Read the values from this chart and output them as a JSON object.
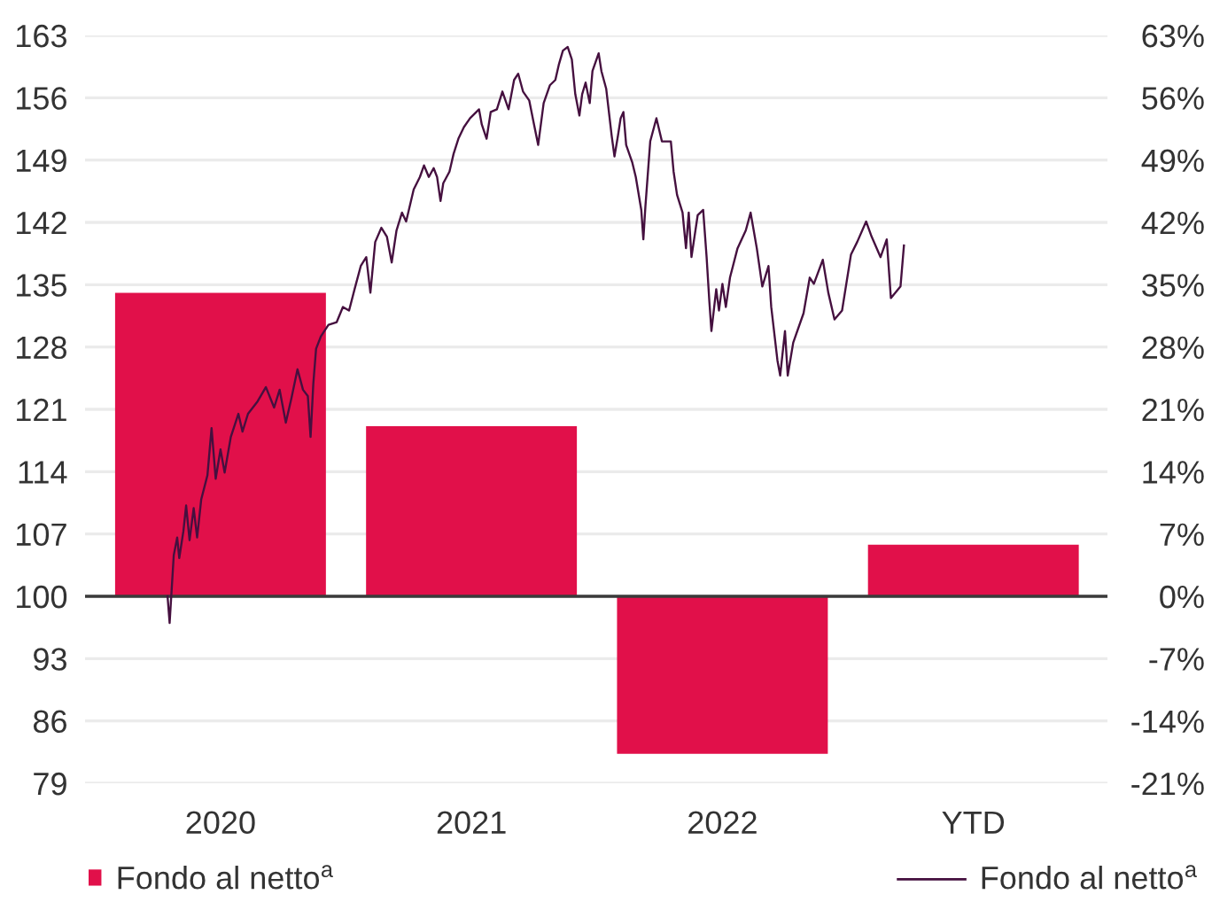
{
  "chart_data": {
    "type": "bar",
    "series": [
      {
        "name": "Fondo al netto$^{a}$",
        "axis": "y2",
        "color": "#e1104a",
        "x": [
          "2020-07-01",
          "2021-07-01",
          "2022-07-01",
          "2023-07-01"
        ],
        "values": [
          34.1,
          19.1,
          -17.7,
          5.8
        ]
      },
      {
        "name": "Fondo al netto$^{a}$",
        "type": "line",
        "axis": "y",
        "color": "#45103f",
        "x": [
          "2020-04-15",
          "2020-04-18",
          "2020-04-24",
          "2020-04-29",
          "2020-05-02",
          "2020-05-08",
          "2020-05-12",
          "2020-05-17",
          "2020-05-23",
          "2020-05-28",
          "2020-06-03",
          "2020-06-12",
          "2020-06-18",
          "2020-06-24",
          "2020-07-01",
          "2020-07-07",
          "2020-07-16",
          "2020-07-27",
          "2020-08-02",
          "2020-08-10",
          "2020-08-24",
          "2020-09-05",
          "2020-09-17",
          "2020-09-25",
          "2020-10-04",
          "2020-10-12",
          "2020-10-21",
          "2020-10-29",
          "2020-11-05",
          "2020-11-09",
          "2020-11-13",
          "2020-11-17",
          "2020-11-24",
          "2020-12-05",
          "2020-12-17",
          "2020-12-26",
          "2021-01-04",
          "2021-01-12",
          "2021-01-21",
          "2021-01-29",
          "2021-02-04",
          "2021-02-11",
          "2021-02-20",
          "2021-02-28",
          "2021-03-07",
          "2021-03-14",
          "2021-03-22",
          "2021-03-28",
          "2021-04-08",
          "2021-04-17",
          "2021-04-23",
          "2021-04-30",
          "2021-05-07",
          "2021-05-12",
          "2021-05-17",
          "2021-05-21",
          "2021-05-30",
          "2021-06-05",
          "2021-06-12",
          "2021-06-20",
          "2021-06-29",
          "2021-07-12",
          "2021-07-16",
          "2021-07-23",
          "2021-07-29",
          "2021-08-07",
          "2021-08-15",
          "2021-08-24",
          "2021-09-01",
          "2021-09-07",
          "2021-09-14",
          "2021-09-23",
          "2021-09-30",
          "2021-10-06",
          "2021-10-14",
          "2021-10-23",
          "2021-10-31",
          "2021-11-05",
          "2021-11-11",
          "2021-11-18",
          "2021-11-24",
          "2021-11-29",
          "2021-12-05",
          "2021-12-09",
          "2021-12-14",
          "2021-12-20",
          "2021-12-24",
          "2022-01-02",
          "2022-01-06",
          "2022-01-13",
          "2022-01-21",
          "2022-01-25",
          "2022-01-30",
          "2022-02-03",
          "2022-02-07",
          "2022-02-11",
          "2022-02-20",
          "2022-02-25",
          "2022-03-05",
          "2022-03-08",
          "2022-03-11",
          "2022-03-18",
          "2022-03-27",
          "2022-04-04",
          "2022-04-17",
          "2022-04-21",
          "2022-04-26",
          "2022-05-04",
          "2022-05-09",
          "2022-05-13",
          "2022-05-17",
          "2022-05-26",
          "2022-06-03",
          "2022-06-08",
          "2022-06-12",
          "2022-06-15",
          "2022-06-22",
          "2022-06-26",
          "2022-07-01",
          "2022-07-06",
          "2022-07-12",
          "2022-07-23",
          "2022-08-04",
          "2022-08-11",
          "2022-08-20",
          "2022-08-28",
          "2022-09-06",
          "2022-09-10",
          "2022-09-19",
          "2022-09-23",
          "2022-09-30",
          "2022-10-04",
          "2022-10-12",
          "2022-10-27",
          "2022-11-05",
          "2022-11-11",
          "2022-11-24",
          "2022-12-02",
          "2022-12-11",
          "2022-12-22",
          "2023-01-04",
          "2023-01-13",
          "2023-01-26",
          "2023-02-03",
          "2023-02-16",
          "2023-02-25",
          "2023-03-03",
          "2023-03-17",
          "2023-03-22"
        ],
        "values": [
          100.0,
          97.0,
          104.6,
          106.6,
          104.3,
          107.3,
          110.2,
          106.3,
          109.9,
          106.6,
          110.9,
          113.6,
          118.9,
          113.2,
          116.5,
          113.9,
          117.9,
          120.5,
          118.5,
          120.5,
          121.9,
          123.5,
          121.2,
          123.2,
          119.5,
          122.2,
          125.5,
          123.2,
          122.5,
          117.9,
          123.9,
          127.8,
          129.2,
          130.5,
          130.8,
          132.5,
          132.1,
          134.5,
          137.1,
          138.1,
          134.1,
          139.8,
          141.4,
          140.4,
          137.5,
          141.1,
          143.1,
          142.1,
          145.7,
          147.1,
          148.4,
          147.1,
          148.1,
          147.1,
          144.4,
          146.4,
          147.7,
          149.7,
          151.4,
          152.7,
          153.7,
          154.7,
          153.0,
          151.4,
          154.4,
          154.7,
          156.7,
          154.7,
          158.0,
          158.7,
          156.7,
          155.7,
          153.0,
          150.7,
          155.4,
          157.4,
          158.0,
          159.7,
          161.3,
          161.7,
          160.3,
          156.4,
          154.0,
          156.4,
          157.7,
          155.4,
          159.0,
          161.0,
          159.0,
          157.0,
          151.7,
          149.4,
          151.7,
          153.7,
          154.4,
          150.7,
          148.7,
          147.1,
          143.4,
          140.1,
          143.8,
          151.1,
          153.7,
          151.1,
          151.1,
          147.7,
          145.1,
          143.1,
          139.1,
          143.1,
          138.1,
          142.8,
          143.4,
          138.1,
          133.1,
          129.8,
          134.5,
          132.1,
          135.1,
          132.5,
          135.8,
          139.1,
          141.1,
          143.1,
          139.1,
          134.8,
          137.1,
          132.5,
          126.5,
          124.8,
          129.8,
          124.8,
          128.5,
          131.8,
          135.8,
          135.1,
          137.8,
          134.1,
          131.1,
          132.1,
          138.4,
          139.8,
          142.1,
          140.4,
          138.1,
          140.1,
          133.5,
          134.8,
          139.4
        ]
      }
    ],
    "xlim": [
      "2019-12-17",
      "2024-01-12"
    ],
    "xticks": [
      {
        "value": "2020-07-01",
        "label": "2020"
      },
      {
        "value": "2021-07-01",
        "label": "2021"
      },
      {
        "value": "2022-07-01",
        "label": "2022"
      },
      {
        "value": "2023-07-01",
        "label": "YTD"
      }
    ],
    "ylim": [
      79,
      163
    ],
    "yticks": [
      79,
      86,
      93,
      100,
      107,
      114,
      121,
      128,
      135,
      142,
      149,
      156,
      163
    ],
    "y2lim": [
      -21,
      63
    ],
    "y2ticks": [
      {
        "value": -21,
        "label": "-21%"
      },
      {
        "value": -14,
        "label": "-14%"
      },
      {
        "value": -7,
        "label": "-7%"
      },
      {
        "value": 0,
        "label": "0%"
      },
      {
        "value": 7,
        "label": "7%"
      },
      {
        "value": 14,
        "label": "14%"
      },
      {
        "value": 21,
        "label": "21%"
      },
      {
        "value": 28,
        "label": "28%"
      },
      {
        "value": 35,
        "label": "35%"
      },
      {
        "value": 42,
        "label": "42%"
      },
      {
        "value": 49,
        "label": "49%"
      },
      {
        "value": 56,
        "label": "56%"
      },
      {
        "value": 63,
        "label": "63%"
      }
    ],
    "grid": "y",
    "legend": "bottom",
    "ref_lines": [
      {
        "axis": "y2",
        "value": 0,
        "color": "#3a3a3a"
      }
    ]
  }
}
